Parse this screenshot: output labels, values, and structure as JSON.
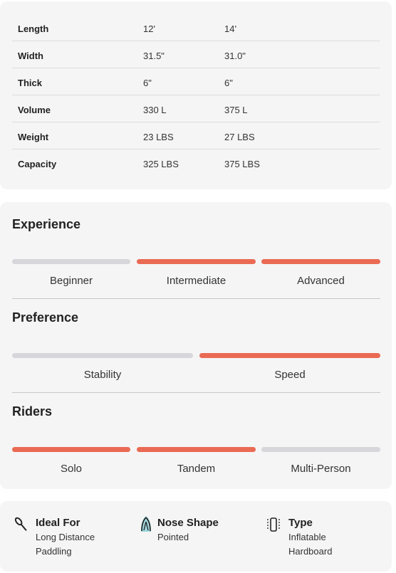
{
  "specs": {
    "rows": [
      {
        "label": "Length",
        "v1": "12'",
        "v2": "14'"
      },
      {
        "label": "Width",
        "v1": "31.5\"",
        "v2": "31.0\""
      },
      {
        "label": "Thick",
        "v1": "6\"",
        "v2": "6\""
      },
      {
        "label": "Volume",
        "v1": "330 L",
        "v2": "375 L"
      },
      {
        "label": "Weight",
        "v1": "23 LBS",
        "v2": "27 LBS"
      },
      {
        "label": "Capacity",
        "v1": "325 LBS",
        "v2": "375 LBS"
      }
    ]
  },
  "experience": {
    "title": "Experience",
    "levels": [
      {
        "label": "Beginner",
        "active": false
      },
      {
        "label": "Intermediate",
        "active": true
      },
      {
        "label": "Advanced",
        "active": true
      }
    ]
  },
  "preference": {
    "title": "Preference",
    "levels": [
      {
        "label": "Stability",
        "active": false
      },
      {
        "label": "Speed",
        "active": true
      }
    ]
  },
  "riders": {
    "title": "Riders",
    "levels": [
      {
        "label": "Solo",
        "active": true
      },
      {
        "label": "Tandem",
        "active": true
      },
      {
        "label": "Multi-Person",
        "active": false
      }
    ]
  },
  "features": {
    "ideal_for": {
      "title": "Ideal For",
      "line1": "Long Distance",
      "line2": "Paddling",
      "icon": "paddle-icon"
    },
    "nose_shape": {
      "title": "Nose Shape",
      "line1": "Pointed",
      "icon": "pointed-nose-icon"
    },
    "type": {
      "title": "Type",
      "line1": "Inflatable",
      "line2": "Hardboard",
      "icon": "board-type-icon"
    }
  },
  "colors": {
    "accent": "#ea6a53",
    "inactive": "#d6d6db",
    "card": "#f5f5f5"
  }
}
